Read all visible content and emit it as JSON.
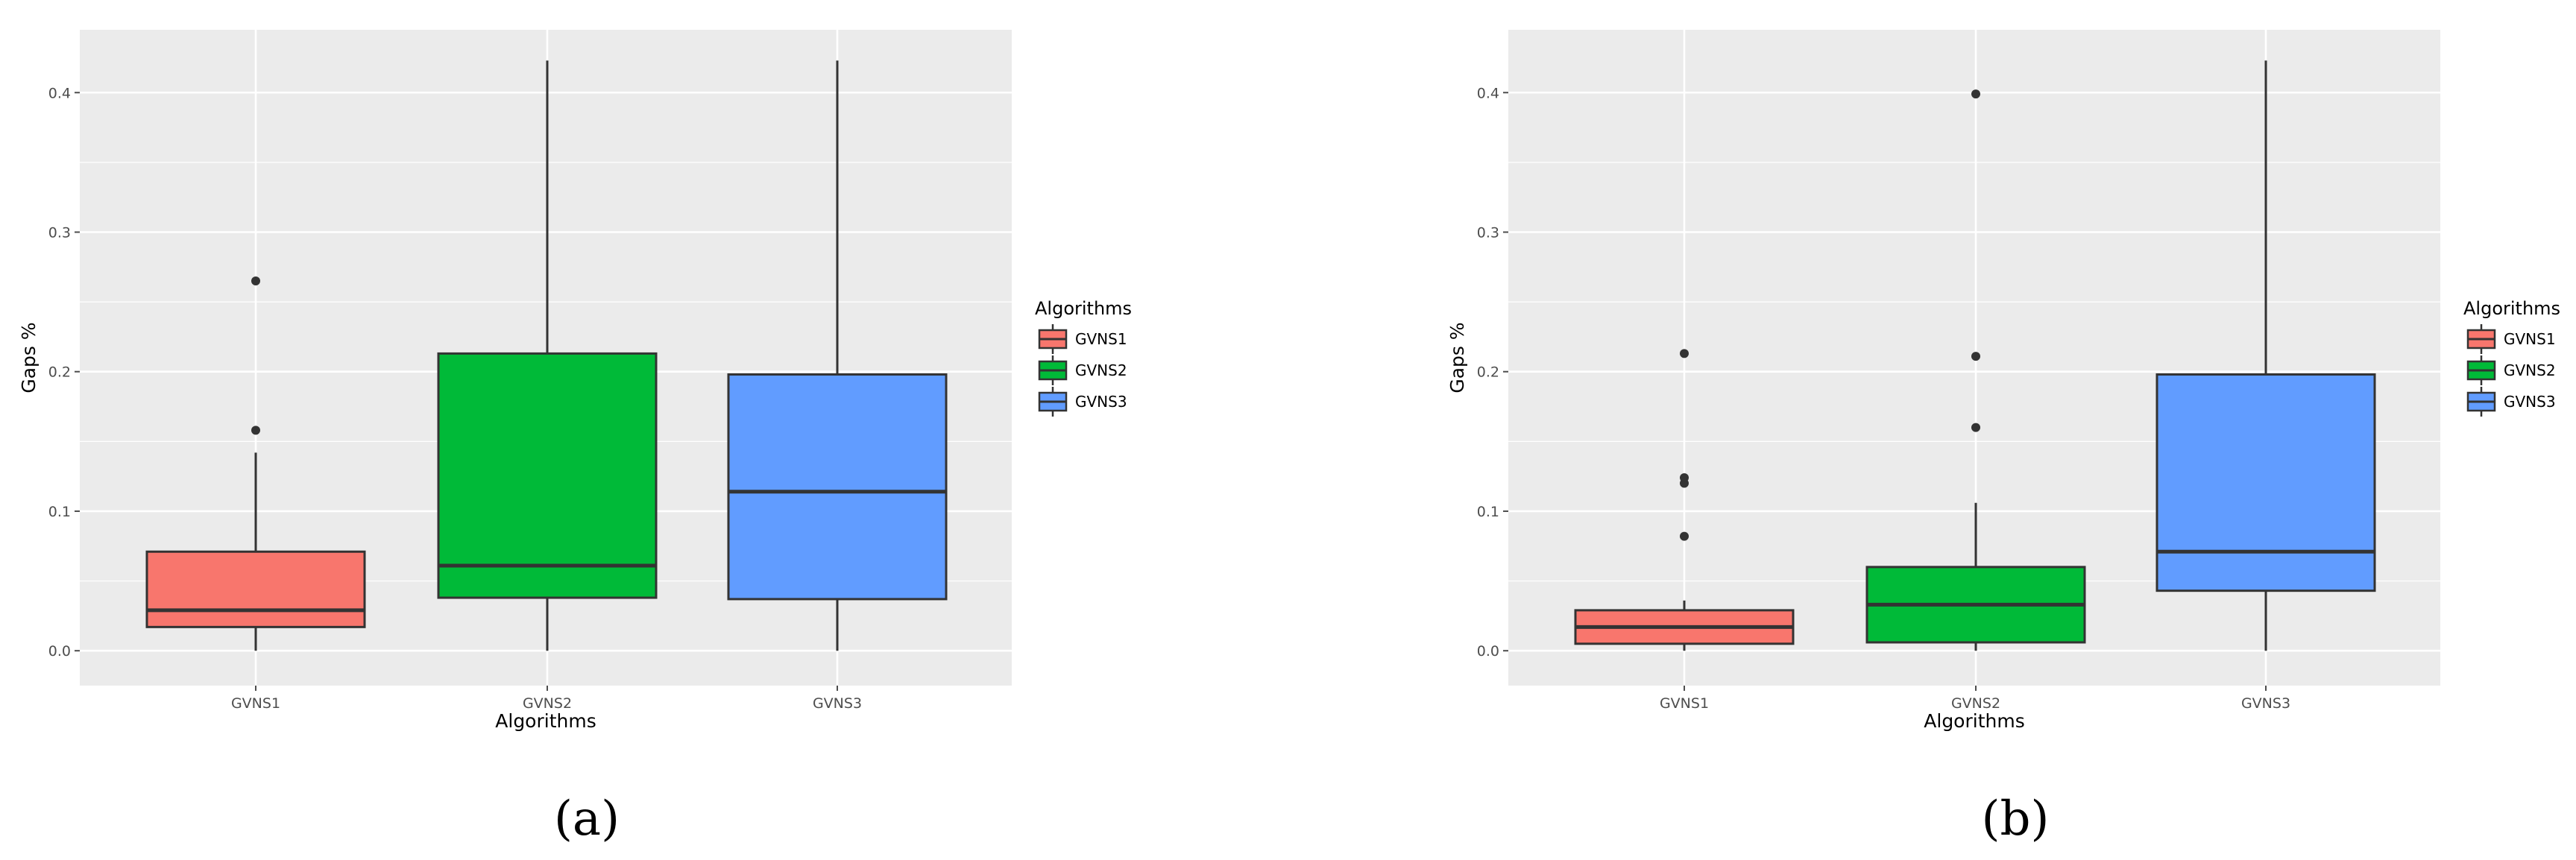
{
  "chart_data": [
    {
      "type": "boxplot",
      "caption": "(a)",
      "xlabel": "Algorithms",
      "ylabel": "Gaps %",
      "ylim": [
        -0.025,
        0.445
      ],
      "yticks": [
        "0.0",
        "0.1",
        "0.2",
        "0.3",
        "0.4"
      ],
      "grid": true,
      "legend": {
        "title": "Algorithms",
        "position": "right",
        "entries": [
          "GVNS1",
          "GVNS2",
          "GVNS3"
        ]
      },
      "categories": [
        "GVNS1",
        "GVNS2",
        "GVNS3"
      ],
      "series": [
        {
          "name": "GVNS1",
          "color": "#F8766D",
          "min": 0.0,
          "q1": 0.017,
          "median": 0.029,
          "q3": 0.071,
          "max": 0.142,
          "outliers": [
            0.158,
            0.265
          ]
        },
        {
          "name": "GVNS2",
          "color": "#00BA38",
          "min": 0.0,
          "q1": 0.038,
          "median": 0.061,
          "q3": 0.213,
          "max": 0.423,
          "outliers": []
        },
        {
          "name": "GVNS3",
          "color": "#619CFF",
          "min": 0.0,
          "q1": 0.037,
          "median": 0.114,
          "q3": 0.198,
          "max": 0.423,
          "outliers": []
        }
      ]
    },
    {
      "type": "boxplot",
      "caption": "(b)",
      "xlabel": "Algorithms",
      "ylabel": "Gaps %",
      "ylim": [
        -0.025,
        0.445
      ],
      "yticks": [
        "0.0",
        "0.1",
        "0.2",
        "0.3",
        "0.4"
      ],
      "grid": true,
      "legend": {
        "title": "Algorithms",
        "position": "right",
        "entries": [
          "GVNS1",
          "GVNS2",
          "GVNS3"
        ]
      },
      "categories": [
        "GVNS1",
        "GVNS2",
        "GVNS3"
      ],
      "series": [
        {
          "name": "GVNS1",
          "color": "#F8766D",
          "min": 0.0,
          "q1": 0.005,
          "median": 0.017,
          "q3": 0.029,
          "max": 0.036,
          "outliers": [
            0.082,
            0.12,
            0.124,
            0.213
          ]
        },
        {
          "name": "GVNS2",
          "color": "#00BA38",
          "min": 0.0,
          "q1": 0.006,
          "median": 0.033,
          "q3": 0.06,
          "max": 0.106,
          "outliers": [
            0.16,
            0.211,
            0.399
          ]
        },
        {
          "name": "GVNS3",
          "color": "#619CFF",
          "min": 0.0,
          "q1": 0.043,
          "median": 0.071,
          "q3": 0.198,
          "max": 0.423,
          "outliers": []
        }
      ]
    }
  ]
}
